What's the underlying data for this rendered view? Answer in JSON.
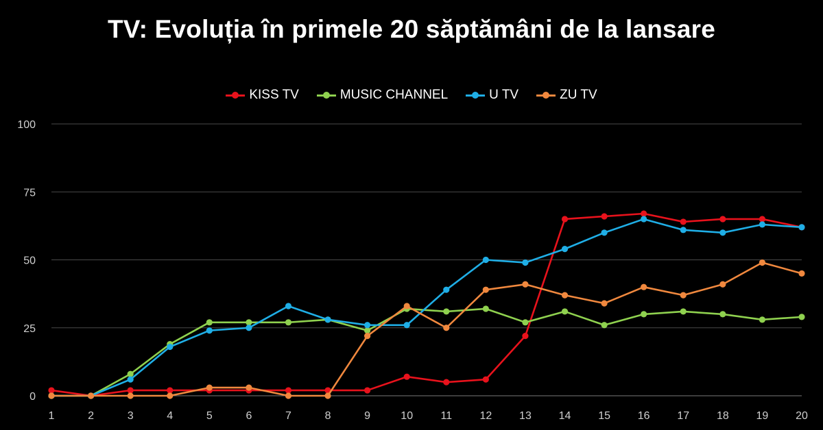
{
  "title": "TV: Evoluția în primele 20 săptămâni de la lansare",
  "chart_data": {
    "type": "line",
    "title": "TV: Evoluția în primele 20 săptămâni de la lansare",
    "xlabel": "",
    "ylabel": "",
    "x": [
      1,
      2,
      3,
      4,
      5,
      6,
      7,
      8,
      9,
      10,
      11,
      12,
      13,
      14,
      15,
      16,
      17,
      18,
      19,
      20
    ],
    "x_ticks": [
      "1",
      "2",
      "3",
      "4",
      "5",
      "6",
      "7",
      "8",
      "9",
      "10",
      "11",
      "12",
      "13",
      "14",
      "15",
      "16",
      "17",
      "18",
      "19",
      "20"
    ],
    "y_ticks": [
      "0",
      "25",
      "50",
      "75",
      "100"
    ],
    "ylim": [
      0,
      100
    ],
    "grid": true,
    "legend_position": "top-center",
    "series": [
      {
        "name": "KISS TV",
        "color": "#e8121c",
        "values": [
          2,
          0,
          2,
          2,
          2,
          2,
          2,
          2,
          2,
          7,
          5,
          6,
          22,
          65,
          66,
          67,
          64,
          65,
          65,
          62
        ]
      },
      {
        "name": "MUSIC CHANNEL",
        "color": "#8fd14f",
        "values": [
          0,
          0,
          8,
          19,
          27,
          27,
          27,
          28,
          24,
          32,
          31,
          32,
          27,
          31,
          26,
          30,
          31,
          30,
          28,
          29
        ]
      },
      {
        "name": "U TV",
        "color": "#1faee6",
        "values": [
          0,
          0,
          6,
          18,
          24,
          25,
          33,
          28,
          26,
          26,
          39,
          50,
          49,
          54,
          60,
          65,
          61,
          60,
          63,
          62
        ]
      },
      {
        "name": "ZU TV",
        "color": "#f0883e",
        "values": [
          0,
          0,
          0,
          0,
          3,
          3,
          0,
          0,
          22,
          33,
          25,
          39,
          41,
          37,
          34,
          40,
          37,
          41,
          49,
          45
        ]
      }
    ]
  }
}
